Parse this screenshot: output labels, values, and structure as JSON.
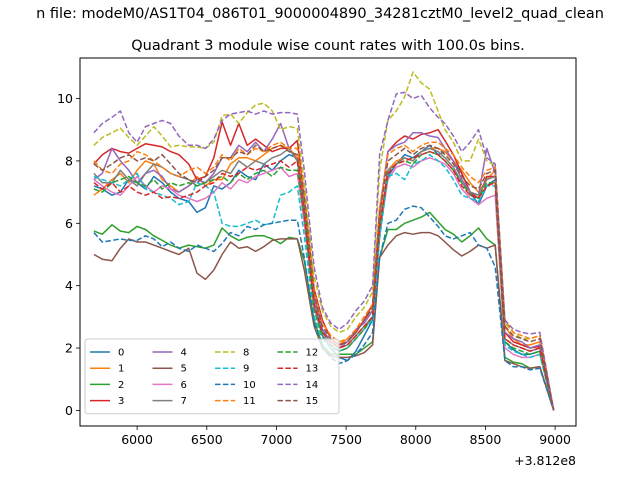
{
  "chart_data": {
    "type": "line",
    "suptitle": "n file: modeM0/AS1T04_086T01_9000004890_34281cztM0_level2_quad_clean",
    "title": "Quadrant 3 module wise count rates with 100.0s bins.",
    "xlabel": "",
    "ylabel": "",
    "x_offset_label": "+3.812e8",
    "xlim": [
      5590,
      9150
    ],
    "ylim": [
      -0.5,
      11.3
    ],
    "xticks": [
      6000,
      6500,
      7000,
      7500,
      8000,
      8500,
      9000
    ],
    "yticks": [
      0,
      2,
      4,
      6,
      8,
      10
    ],
    "grid": false,
    "legend_position": "lower-left",
    "legend_columns": 4,
    "x": [
      5690,
      5750,
      5820,
      5880,
      5940,
      6000,
      6060,
      6120,
      6180,
      6240,
      6300,
      6370,
      6430,
      6490,
      6550,
      6610,
      6670,
      6730,
      6790,
      6850,
      6910,
      6970,
      7030,
      7090,
      7150,
      7200,
      7270,
      7330,
      7390,
      7450,
      7510,
      7570,
      7630,
      7690,
      7740,
      7800,
      7860,
      7920,
      7980,
      8040,
      8100,
      8160,
      8210,
      8270,
      8330,
      8390,
      8450,
      8510,
      8570,
      8640,
      8700,
      8760,
      8820,
      8890,
      8990
    ],
    "series": [
      {
        "name": "0",
        "color": "#1f77b4",
        "dashed": false,
        "values": [
          7.2,
          7.1,
          6.9,
          7.0,
          7.4,
          7.3,
          7.1,
          7.5,
          7.3,
          7.0,
          6.8,
          6.7,
          6.35,
          6.5,
          7.2,
          7.1,
          7.3,
          7.7,
          7.5,
          7.4,
          7.9,
          7.7,
          8.0,
          8.2,
          8.1,
          6.3,
          3.3,
          2.4,
          2.0,
          1.7,
          1.6,
          1.9,
          2.4,
          2.9,
          5.6,
          7.5,
          7.9,
          8.2,
          8.1,
          8.3,
          8.5,
          8.2,
          8.3,
          8.0,
          7.6,
          7.0,
          6.6,
          7.2,
          7.4,
          2.2,
          1.95,
          1.8,
          1.8,
          1.9,
          0.0
        ]
      },
      {
        "name": "1",
        "color": "#ff7f0e",
        "dashed": false,
        "values": [
          6.9,
          7.1,
          7.4,
          7.6,
          7.3,
          7.7,
          8.0,
          7.9,
          7.4,
          7.2,
          7.0,
          7.2,
          7.5,
          7.2,
          7.4,
          7.4,
          7.9,
          8.1,
          8.1,
          8.0,
          8.2,
          8.4,
          8.5,
          8.4,
          8.1,
          6.4,
          3.3,
          2.6,
          2.2,
          2.1,
          2.3,
          2.5,
          2.9,
          3.2,
          6.0,
          7.7,
          8.0,
          8.1,
          8.0,
          8.3,
          8.4,
          8.4,
          8.3,
          8.0,
          7.7,
          7.3,
          7.0,
          7.4,
          7.7,
          2.7,
          2.3,
          2.1,
          2.1,
          2.2,
          0.0
        ]
      },
      {
        "name": "2",
        "color": "#2ca02c",
        "dashed": false,
        "values": [
          5.75,
          5.65,
          5.95,
          5.75,
          5.7,
          5.9,
          5.8,
          5.6,
          5.45,
          5.3,
          5.2,
          5.3,
          5.25,
          5.2,
          5.3,
          5.85,
          5.6,
          5.45,
          5.55,
          5.6,
          5.6,
          5.5,
          5.35,
          5.55,
          5.5,
          4.8,
          2.9,
          2.1,
          1.8,
          1.8,
          1.8,
          1.8,
          2.0,
          2.2,
          4.9,
          5.8,
          5.8,
          6.0,
          6.1,
          6.2,
          6.35,
          6.05,
          5.8,
          5.65,
          5.4,
          5.6,
          5.85,
          5.5,
          5.3,
          1.7,
          1.55,
          1.5,
          1.35,
          1.4,
          0.0
        ]
      },
      {
        "name": "3",
        "color": "#d62728",
        "dashed": false,
        "values": [
          7.9,
          8.2,
          8.4,
          8.3,
          8.25,
          8.4,
          8.55,
          8.5,
          8.45,
          8.3,
          8.2,
          7.9,
          7.4,
          7.5,
          8.1,
          9.25,
          8.5,
          9.2,
          8.5,
          8.7,
          8.5,
          8.3,
          8.4,
          8.4,
          8.65,
          6.9,
          3.9,
          2.9,
          2.3,
          2.1,
          2.2,
          2.5,
          2.9,
          3.4,
          6.4,
          8.3,
          8.6,
          8.8,
          8.7,
          8.85,
          8.9,
          9.0,
          8.65,
          8.2,
          7.6,
          7.0,
          6.8,
          7.5,
          7.5,
          2.5,
          2.2,
          2.1,
          2.0,
          2.05,
          0.0
        ]
      },
      {
        "name": "4",
        "color": "#9467bd",
        "dashed": false,
        "values": [
          7.4,
          7.6,
          8.4,
          8.0,
          7.7,
          7.3,
          7.6,
          7.7,
          7.5,
          7.1,
          7.0,
          7.2,
          7.4,
          7.3,
          7.6,
          8.1,
          8.1,
          8.5,
          8.3,
          8.6,
          8.3,
          8.7,
          9.2,
          8.4,
          8.0,
          6.7,
          3.6,
          2.6,
          2.2,
          2.0,
          2.2,
          2.6,
          2.8,
          3.2,
          6.3,
          8.3,
          8.5,
          8.6,
          8.9,
          8.9,
          8.8,
          8.75,
          8.4,
          8.0,
          7.4,
          7.0,
          6.9,
          8.4,
          7.6,
          2.5,
          2.3,
          2.2,
          2.0,
          2.1,
          0.0
        ]
      },
      {
        "name": "5",
        "color": "#8c564b",
        "dashed": false,
        "values": [
          5.0,
          4.85,
          4.8,
          5.2,
          5.5,
          5.4,
          5.4,
          5.3,
          5.2,
          5.1,
          5.0,
          5.2,
          4.4,
          4.2,
          4.5,
          5.0,
          5.4,
          5.2,
          5.25,
          5.1,
          5.25,
          5.45,
          5.5,
          5.5,
          5.5,
          4.5,
          2.7,
          2.0,
          1.75,
          1.7,
          1.7,
          1.75,
          1.85,
          2.1,
          4.9,
          5.3,
          5.6,
          5.7,
          5.65,
          5.7,
          5.7,
          5.6,
          5.4,
          5.15,
          4.95,
          5.1,
          5.3,
          5.2,
          5.3,
          1.6,
          1.5,
          1.4,
          1.35,
          1.4,
          0.0
        ]
      },
      {
        "name": "6",
        "color": "#e377c2",
        "dashed": false,
        "values": [
          7.4,
          7.2,
          7.0,
          6.9,
          7.2,
          7.5,
          7.2,
          7.0,
          7.2,
          7.1,
          6.9,
          6.8,
          6.7,
          6.8,
          7.0,
          7.3,
          7.1,
          7.4,
          7.3,
          7.5,
          7.6,
          7.7,
          7.8,
          7.5,
          7.6,
          6.0,
          3.3,
          2.5,
          2.1,
          1.9,
          2.0,
          2.3,
          2.6,
          3.0,
          5.7,
          7.4,
          7.8,
          7.9,
          7.8,
          8.0,
          8.1,
          8.0,
          7.9,
          7.6,
          7.1,
          6.8,
          6.6,
          6.8,
          6.9,
          2.0,
          1.8,
          1.7,
          1.7,
          1.8,
          0.0
        ]
      },
      {
        "name": "7",
        "color": "#7f7f7f",
        "dashed": false,
        "values": [
          7.6,
          7.3,
          7.3,
          7.7,
          7.4,
          7.2,
          7.6,
          7.9,
          7.8,
          7.6,
          7.5,
          7.4,
          7.2,
          7.3,
          7.5,
          7.7,
          7.6,
          8.0,
          7.8,
          8.0,
          7.9,
          8.1,
          8.2,
          8.4,
          8.0,
          6.5,
          3.4,
          2.5,
          2.2,
          2.0,
          2.1,
          2.4,
          2.7,
          3.0,
          5.8,
          7.7,
          7.9,
          8.1,
          8.0,
          8.3,
          8.4,
          8.3,
          8.1,
          7.8,
          7.3,
          7.0,
          6.9,
          7.4,
          7.5,
          2.3,
          2.1,
          2.0,
          1.9,
          2.0,
          0.0
        ]
      },
      {
        "name": "8",
        "color": "#bcbd22",
        "dashed": true,
        "values": [
          8.5,
          8.75,
          8.9,
          9.05,
          8.75,
          8.5,
          8.8,
          9.1,
          8.8,
          8.45,
          8.5,
          8.45,
          8.45,
          8.4,
          8.6,
          9.45,
          9.5,
          9.2,
          9.55,
          9.8,
          9.85,
          9.6,
          9.0,
          9.1,
          9.05,
          7.3,
          4.3,
          3.2,
          2.7,
          2.5,
          2.6,
          3.0,
          3.3,
          3.8,
          7.7,
          9.3,
          9.6,
          10.05,
          10.85,
          10.5,
          10.3,
          9.6,
          9.0,
          8.6,
          8.0,
          8.0,
          8.7,
          8.0,
          7.85,
          2.8,
          2.5,
          2.3,
          2.3,
          2.4,
          0.0
        ]
      },
      {
        "name": "9",
        "color": "#17becf",
        "dashed": true,
        "values": [
          7.5,
          7.4,
          7.3,
          7.2,
          7.4,
          7.6,
          7.1,
          7.0,
          6.9,
          6.8,
          6.6,
          6.7,
          7.3,
          7.2,
          7.0,
          6.0,
          5.9,
          5.9,
          6.0,
          6.1,
          5.95,
          6.0,
          6.9,
          7.0,
          7.2,
          5.6,
          3.0,
          2.3,
          2.0,
          1.9,
          2.0,
          2.3,
          2.6,
          2.9,
          5.5,
          7.5,
          7.6,
          7.4,
          7.9,
          8.0,
          8.2,
          8.0,
          7.8,
          7.4,
          6.9,
          6.8,
          6.7,
          7.2,
          7.2,
          2.1,
          1.9,
          1.8,
          1.7,
          1.8,
          0.0
        ]
      },
      {
        "name": "10",
        "color": "#1f77b4",
        "dashed": true,
        "values": [
          5.7,
          5.4,
          5.45,
          5.5,
          5.45,
          5.45,
          5.6,
          5.5,
          5.25,
          5.4,
          5.2,
          5.1,
          5.3,
          5.2,
          5.1,
          5.35,
          5.7,
          5.6,
          5.9,
          5.8,
          5.95,
          6.0,
          6.05,
          6.1,
          6.1,
          4.9,
          2.8,
          2.0,
          1.7,
          1.5,
          1.6,
          1.8,
          2.1,
          2.5,
          4.9,
          6.0,
          6.1,
          6.45,
          6.55,
          6.5,
          6.2,
          5.9,
          5.6,
          5.5,
          5.6,
          5.7,
          5.3,
          5.2,
          4.6,
          1.6,
          1.4,
          1.4,
          1.3,
          1.35,
          0.0
        ]
      },
      {
        "name": "11",
        "color": "#ff7f0e",
        "dashed": true,
        "values": [
          8.0,
          7.7,
          7.6,
          7.9,
          8.0,
          8.3,
          8.2,
          8.0,
          7.8,
          7.6,
          7.5,
          7.7,
          7.8,
          7.6,
          7.8,
          8.2,
          8.0,
          8.4,
          8.2,
          8.4,
          8.3,
          8.5,
          8.6,
          8.4,
          8.4,
          6.9,
          3.8,
          2.8,
          2.4,
          2.2,
          2.3,
          2.6,
          3.0,
          3.4,
          6.5,
          8.2,
          8.4,
          8.5,
          8.3,
          8.5,
          8.6,
          8.6,
          8.4,
          8.2,
          7.8,
          7.5,
          7.3,
          7.7,
          7.8,
          2.9,
          2.5,
          2.4,
          2.3,
          2.4,
          0.0
        ]
      },
      {
        "name": "12",
        "color": "#2ca02c",
        "dashed": true,
        "values": [
          7.1,
          7.0,
          7.3,
          7.4,
          7.5,
          7.3,
          7.2,
          7.4,
          7.1,
          7.3,
          7.2,
          7.3,
          7.2,
          7.3,
          7.4,
          7.5,
          7.3,
          7.6,
          7.4,
          7.6,
          7.7,
          7.5,
          7.8,
          7.7,
          7.7,
          6.2,
          3.2,
          2.4,
          2.1,
          1.9,
          2.0,
          2.3,
          2.6,
          3.0,
          5.8,
          7.6,
          7.9,
          8.0,
          7.9,
          8.2,
          8.3,
          8.2,
          8.0,
          7.7,
          7.3,
          6.9,
          6.8,
          7.3,
          7.3,
          2.2,
          2.0,
          1.9,
          1.8,
          1.9,
          0.0
        ]
      },
      {
        "name": "13",
        "color": "#d62728",
        "dashed": true,
        "values": [
          7.3,
          7.1,
          7.3,
          7.0,
          7.2,
          7.0,
          6.9,
          7.0,
          6.8,
          6.85,
          6.8,
          6.9,
          7.0,
          7.2,
          7.3,
          7.6,
          7.5,
          7.6,
          7.8,
          7.7,
          7.8,
          7.9,
          8.0,
          7.8,
          8.0,
          6.3,
          3.4,
          2.5,
          2.2,
          2.0,
          2.1,
          2.4,
          2.7,
          3.0,
          5.9,
          7.6,
          7.9,
          8.0,
          8.1,
          8.2,
          8.3,
          8.2,
          8.0,
          7.7,
          7.2,
          6.9,
          6.8,
          7.2,
          7.3,
          2.3,
          2.1,
          2.0,
          1.9,
          2.0,
          0.0
        ]
      },
      {
        "name": "14",
        "color": "#9467bd",
        "dashed": true,
        "values": [
          8.9,
          9.2,
          9.4,
          9.6,
          8.9,
          8.6,
          9.1,
          9.2,
          9.3,
          9.2,
          8.8,
          8.5,
          8.5,
          8.4,
          8.7,
          9.3,
          9.5,
          9.55,
          9.6,
          9.5,
          9.6,
          9.5,
          9.55,
          9.55,
          9.5,
          7.7,
          4.6,
          3.3,
          2.8,
          2.6,
          2.8,
          3.2,
          3.5,
          4.0,
          8.2,
          9.3,
          10.15,
          10.2,
          10.0,
          10.1,
          9.7,
          9.4,
          9.2,
          8.8,
          8.3,
          8.6,
          9.0,
          8.1,
          7.9,
          2.9,
          2.6,
          2.5,
          2.45,
          2.5,
          0.0
        ]
      },
      {
        "name": "15",
        "color": "#8c564b",
        "dashed": true,
        "values": [
          7.9,
          7.7,
          7.9,
          8.1,
          8.2,
          8.0,
          8.1,
          8.0,
          8.2,
          7.9,
          7.6,
          7.4,
          7.3,
          7.5,
          7.7,
          8.1,
          8.1,
          8.3,
          8.2,
          8.5,
          8.3,
          8.4,
          8.5,
          8.3,
          8.2,
          6.8,
          3.7,
          2.7,
          2.3,
          2.1,
          2.2,
          2.5,
          2.9,
          3.3,
          6.3,
          8.0,
          8.2,
          8.4,
          8.2,
          8.4,
          8.5,
          8.4,
          8.2,
          7.9,
          7.5,
          7.2,
          7.1,
          7.6,
          7.7,
          2.7,
          2.4,
          2.3,
          2.2,
          2.3,
          0.0
        ]
      }
    ]
  }
}
